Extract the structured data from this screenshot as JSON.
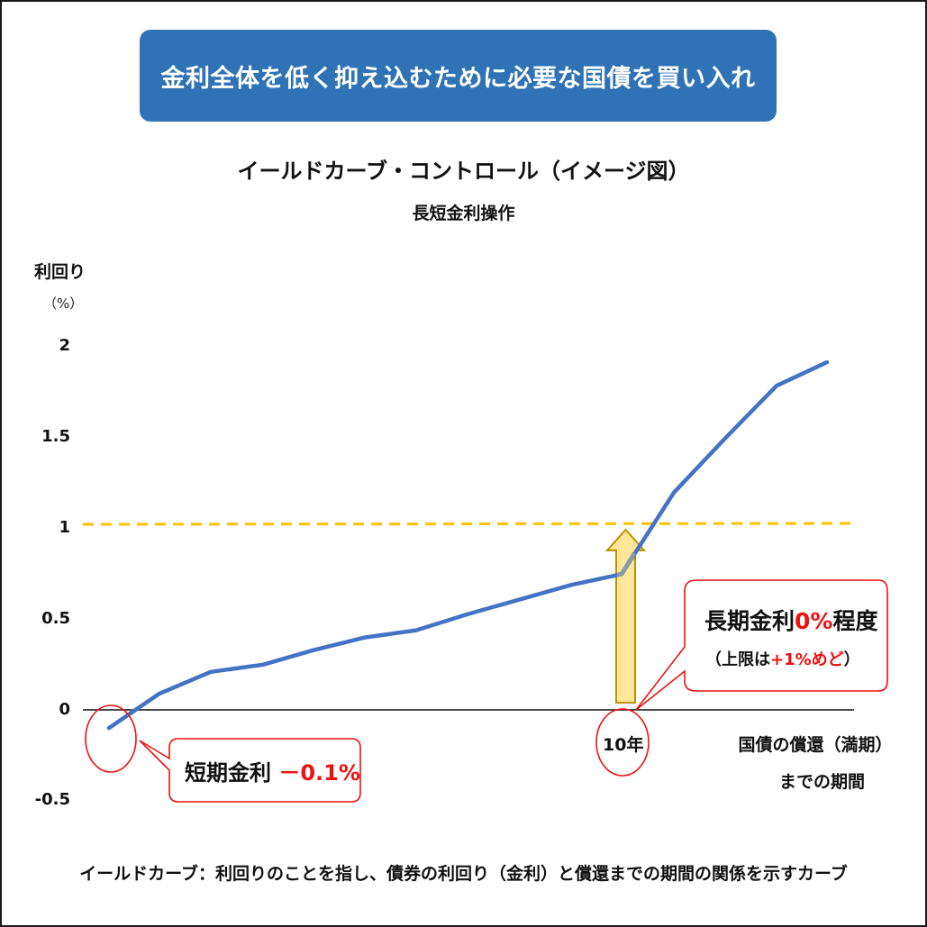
{
  "banner": {
    "text": "金利全体を低く抑え込むために必要な国債を買い入れ",
    "background": "#2f73b6"
  },
  "chart": {
    "title": "イールドカーブ・コントロール（イメージ図）",
    "subtitle": "長短金利操作",
    "ylabel": "利回り",
    "yunit": "（%）",
    "yticks": [
      "2",
      "1.5",
      "1",
      "0.5",
      "0",
      "-0.5"
    ],
    "xlabel_line1": "国債の償還（満期）",
    "xlabel_line2": "までの期間",
    "ten_year_label": "10年"
  },
  "callouts": {
    "short_term": {
      "prefix": "短期金利",
      "value": "－0.1%"
    },
    "long_term": {
      "prefix": "長期金利",
      "value": "0%",
      "suffix": "程度",
      "sub_open": "（上限は",
      "sub_value": "+1%めど",
      "sub_close": "）"
    }
  },
  "footnote": "イールドカーブ：利回りのことを指し、債券の利回り（金利）と償還までの期間の関係を示すカーブ",
  "colors": {
    "curve": "#4472c4",
    "cap_line": "#ffc000",
    "arrow_fill": "#ffe699",
    "arrow_stroke": "#bf9000",
    "callout": "#ee1111",
    "axis": "#111111"
  },
  "chart_data": {
    "type": "line",
    "title": "イールドカーブ・コントロール（イメージ図）",
    "subtitle": "長短金利操作",
    "xlabel": "国債の償還（満期）までの期間",
    "ylabel": "利回り（%）",
    "ylim": [
      -0.5,
      2
    ],
    "yticks": [
      -0.5,
      0,
      0.5,
      1,
      1.5,
      2
    ],
    "grid": false,
    "x_marked_label": {
      "index": 10,
      "label": "10年"
    },
    "series": [
      {
        "name": "イールドカーブ",
        "x": [
          0,
          1,
          2,
          3,
          4,
          5,
          6,
          7,
          8,
          9,
          10,
          11,
          12,
          13,
          14
        ],
        "values": [
          -0.1,
          0.09,
          0.21,
          0.25,
          0.33,
          0.4,
          0.44,
          0.53,
          0.61,
          0.69,
          0.75,
          1.2,
          1.5,
          1.79,
          1.92
        ]
      }
    ],
    "reference_lines": [
      {
        "type": "horizontal",
        "y": 1,
        "style": "dashed",
        "color": "#ffc000",
        "meaning": "上限 +1%めど"
      }
    ],
    "annotations": [
      {
        "text": "短期金利 －0.1%",
        "target_x": 0,
        "target_y": -0.1
      },
      {
        "text": "長期金利0%程度（上限は+1%めど）",
        "target_x": 10
      },
      {
        "text": "up-arrow at 10年 from 0 to 1",
        "x": 10
      }
    ]
  }
}
